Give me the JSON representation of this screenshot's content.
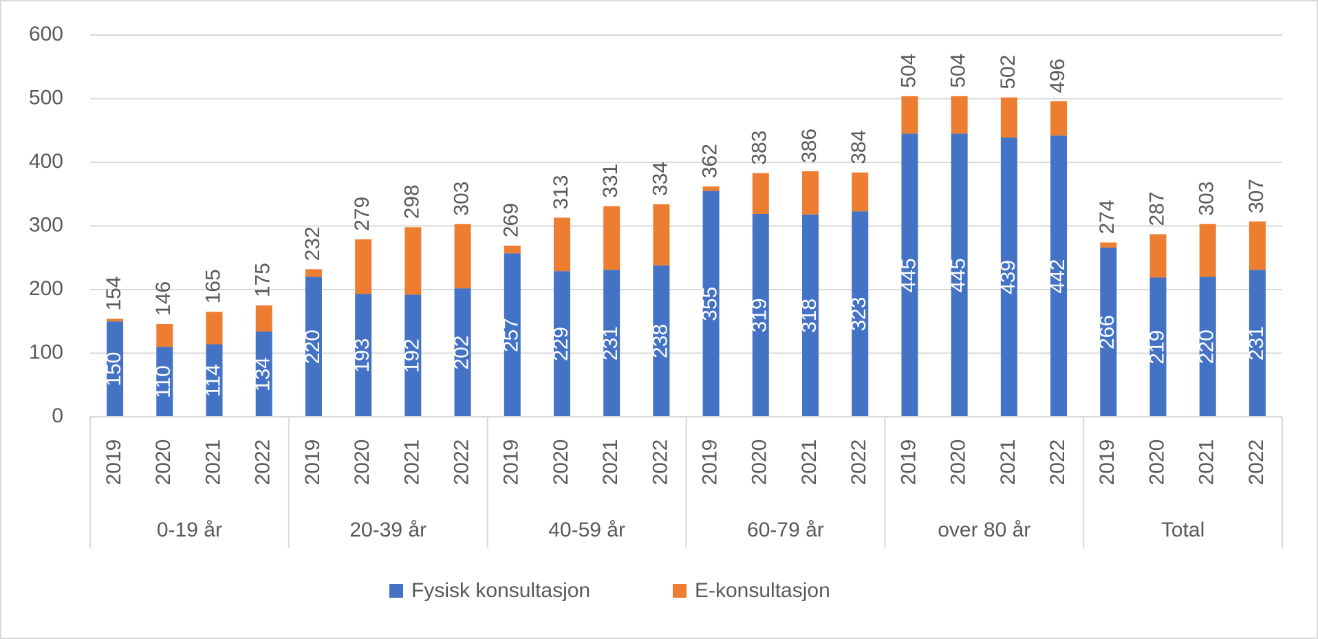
{
  "chart_data": {
    "type": "stacked_bar",
    "categories": [
      "2019",
      "2020",
      "2021",
      "2022",
      "2019",
      "2020",
      "2021",
      "2022",
      "2019",
      "2020",
      "2021",
      "2022",
      "2019",
      "2020",
      "2021",
      "2022",
      "2019",
      "2020",
      "2021",
      "2022",
      "2019",
      "2020",
      "2021",
      "2022"
    ],
    "groups": [
      "0-19 år",
      "20-39 år",
      "40-59 år",
      "60-79 år",
      "over 80 år",
      "Total"
    ],
    "series": [
      {
        "name": "Fysisk konsultasjon",
        "color": "#4472c4",
        "values": [
          150,
          110,
          114,
          134,
          220,
          193,
          192,
          202,
          257,
          229,
          231,
          238,
          355,
          319,
          318,
          323,
          445,
          445,
          439,
          442,
          266,
          219,
          220,
          231
        ]
      },
      {
        "name": "E-konsultasjon",
        "color": "#ed7d31",
        "values": [
          4,
          36,
          51,
          41,
          12,
          86,
          106,
          101,
          12,
          84,
          100,
          96,
          7,
          64,
          68,
          61,
          59,
          59,
          63,
          54,
          8,
          68,
          83,
          76
        ]
      }
    ],
    "totals": [
      154,
      146,
      165,
      175,
      232,
      279,
      298,
      303,
      269,
      313,
      331,
      334,
      362,
      383,
      386,
      384,
      504,
      504,
      502,
      496,
      274,
      287,
      303,
      307
    ],
    "ylim": [
      0,
      600
    ],
    "yticks": [
      0,
      100,
      200,
      300,
      400,
      500,
      600
    ],
    "grid": true,
    "legend_position": "bottom"
  }
}
